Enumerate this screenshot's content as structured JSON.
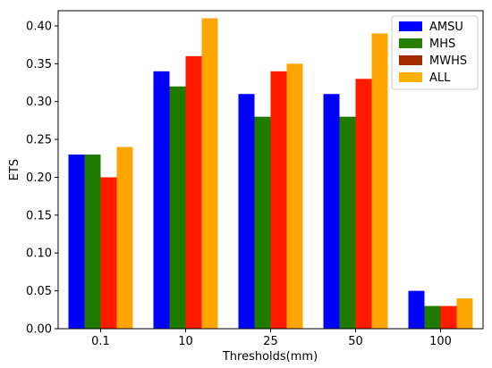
{
  "chart_data": {
    "type": "bar",
    "categories": [
      "0.1",
      "10",
      "25",
      "50",
      "100"
    ],
    "series": [
      {
        "name": "AMSU",
        "color": "#0000ff",
        "values": [
          0.23,
          0.34,
          0.31,
          0.31,
          0.05
        ]
      },
      {
        "name": "MHS",
        "color": "#1e7a00",
        "values": [
          0.23,
          0.32,
          0.28,
          0.28,
          0.03
        ]
      },
      {
        "name": "MWHS",
        "color": "#ff1a00",
        "values": [
          0.2,
          0.36,
          0.34,
          0.33,
          0.03
        ]
      },
      {
        "name": "ALL",
        "color": "#ffa500",
        "values": [
          0.24,
          0.41,
          0.35,
          0.39,
          0.04
        ]
      }
    ],
    "legend_swatch_colors": [
      "#0000ff",
      "#267f00",
      "#a52a00",
      "#ffb000"
    ],
    "xlabel": "Thresholds(mm)",
    "ylabel": "ETS",
    "ylim": [
      0.0,
      0.42
    ],
    "yticks": [
      "0.00",
      "0.05",
      "0.10",
      "0.15",
      "0.20",
      "0.25",
      "0.30",
      "0.35",
      "0.40"
    ],
    "grid": false,
    "legend_position": "top-right"
  }
}
